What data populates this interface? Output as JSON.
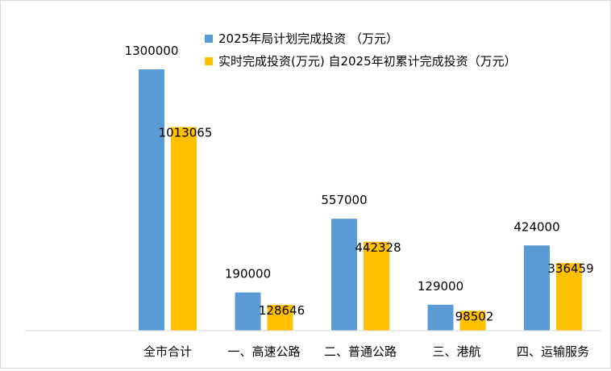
{
  "chart_data": {
    "type": "bar",
    "categories": [
      "全市合计",
      "一、高速公路",
      "二、普通公路",
      "三、港航",
      "四、运输服务"
    ],
    "series": [
      {
        "name": "2025年局计划完成投资 （万元）",
        "color": "#5b9bd5",
        "values": [
          1300000,
          190000,
          557000,
          129000,
          424000
        ]
      },
      {
        "name": "实时完成投资(万元) 自2025年初累计完成投资（万元）",
        "color": "#ffc000",
        "values": [
          1013065,
          128646,
          442328,
          98502,
          336459
        ]
      }
    ],
    "ylim": [
      0,
      1300000
    ],
    "grid": false,
    "legend_position": "top-right",
    "xlabel": "",
    "ylabel": ""
  }
}
